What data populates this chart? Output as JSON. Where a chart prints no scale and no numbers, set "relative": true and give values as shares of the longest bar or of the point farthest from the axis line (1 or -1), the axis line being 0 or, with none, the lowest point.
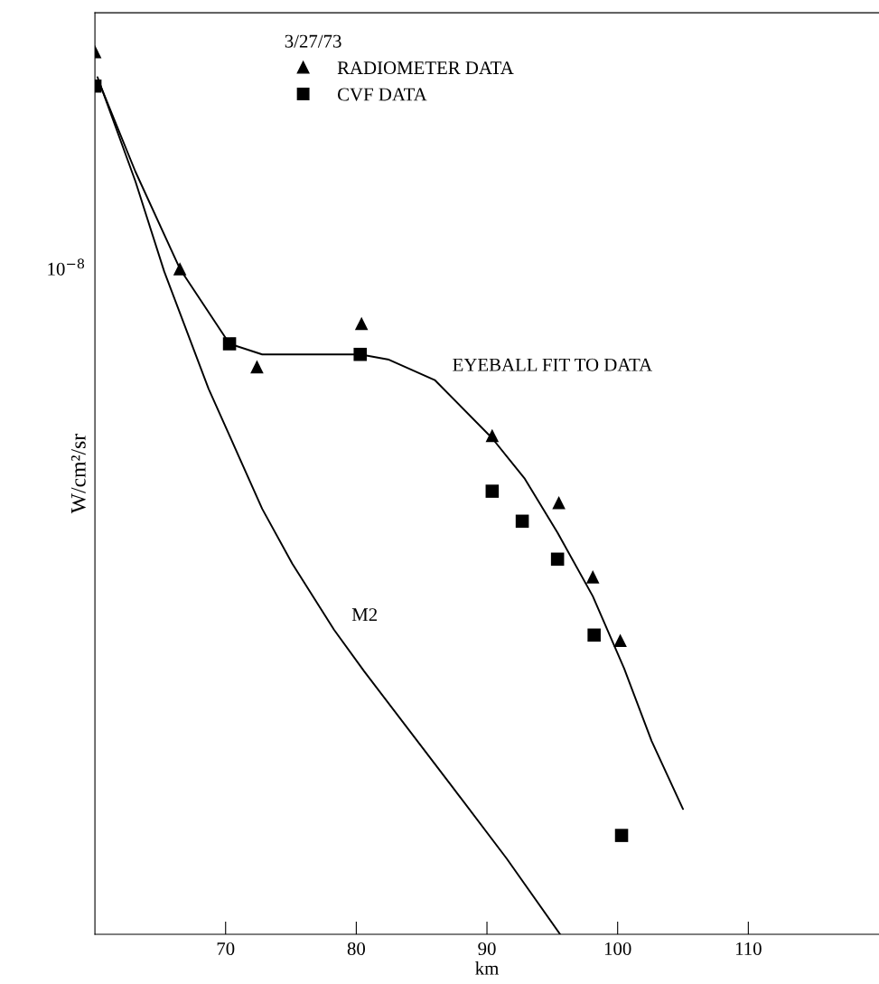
{
  "chart_data": {
    "type": "scatter",
    "relative": true,
    "xlabel": "km",
    "ylabel": "W/cm²/sr",
    "legend_title": "3/27/73",
    "legend": "top left",
    "xlim": [
      60,
      120
    ],
    "xticks": [
      70,
      80,
      90,
      100,
      110
    ],
    "series": [
      {
        "name": "RADIOMETER DATA",
        "marker": "triangle",
        "color": "#000000",
        "x": [
          60,
          66.5,
          72.4,
          80.4,
          90.4,
          95.5,
          98.1,
          100.2
        ],
        "values": [
          1.0,
          0.754,
          0.643,
          0.692,
          0.565,
          0.489,
          0.405,
          0.333
        ]
      },
      {
        "name": "CVF DATA",
        "marker": "square",
        "color": "#000000",
        "x": [
          60,
          70.3,
          80.3,
          90.4,
          92.7,
          95.4,
          98.2,
          100.3
        ],
        "values": [
          0.961,
          0.669,
          0.657,
          0.502,
          0.468,
          0.425,
          0.339,
          0.112
        ]
      },
      {
        "name": "EYEBALL FIT TO DATA",
        "type": "line",
        "marker": "none",
        "line_style": "solid",
        "color": "#000000",
        "x": [
          60.3,
          63.1,
          66.5,
          70.3,
          72.8,
          77.0,
          80.3,
          82.5,
          86.0,
          90.4,
          92.9,
          95.4,
          98.1,
          100.5,
          102.6,
          105.0
        ],
        "values": [
          0.966,
          0.864,
          0.754,
          0.669,
          0.657,
          0.657,
          0.657,
          0.651,
          0.628,
          0.562,
          0.516,
          0.455,
          0.383,
          0.301,
          0.219,
          0.142
        ]
      },
      {
        "name": "M2",
        "type": "line",
        "marker": "none",
        "line_style": "solid",
        "color": "#000000",
        "x": [
          60.2,
          63.1,
          65.3,
          68.7,
          72.8,
          75.1,
          78.3,
          80.6,
          87.3,
          91.5,
          95.6
        ],
        "values": [
          0.971,
          0.853,
          0.751,
          0.618,
          0.482,
          0.42,
          0.345,
          0.298,
          0.168,
          0.086,
          0.0
        ]
      }
    ],
    "annotations": [
      "10$^{−8}$"
    ]
  }
}
